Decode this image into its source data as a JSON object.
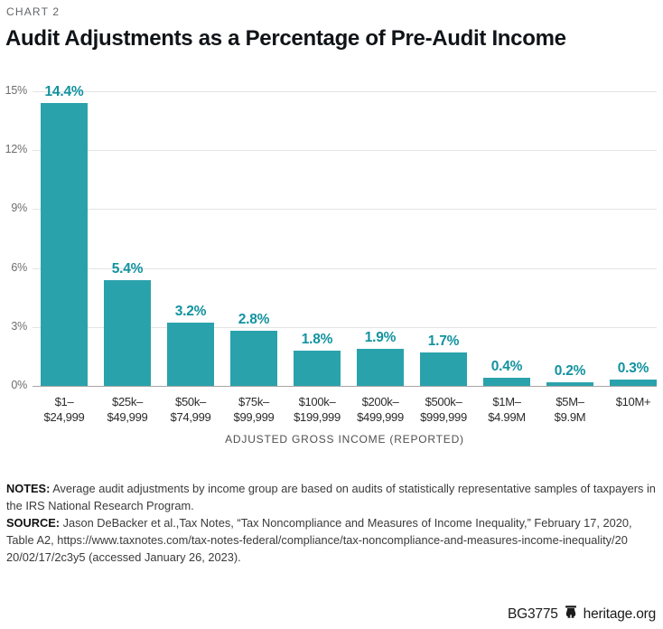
{
  "header": {
    "kicker": "CHART 2",
    "title": "Audit Adjustments as a Percentage of Pre-Audit Income"
  },
  "chart_data": {
    "type": "bar",
    "title": "Audit Adjustments as a Percentage of Pre-Audit Income",
    "xlabel": "ADJUSTED GROSS INCOME (REPORTED)",
    "ylabel": "",
    "ylim": [
      0,
      15
    ],
    "yticks": [
      0,
      3,
      6,
      9,
      12,
      15
    ],
    "ytick_labels": [
      "0%",
      "3%",
      "6%",
      "9%",
      "12%",
      "15%"
    ],
    "grid": true,
    "legend": "none",
    "bar_color": "#2aa2ac",
    "value_label_color": "#12929f",
    "categories": [
      [
        "$1–",
        "$24,999"
      ],
      [
        "$25k–",
        "$49,999"
      ],
      [
        "$50k–",
        "$74,999"
      ],
      [
        "$75k–",
        "$99,999"
      ],
      [
        "$100k–",
        "$199,999"
      ],
      [
        "$200k–",
        "$499,999"
      ],
      [
        "$500k–",
        "$999,999"
      ],
      [
        "$1M–",
        "$4.99M"
      ],
      [
        "$5M–",
        "$9.9M"
      ],
      [
        "$10M+"
      ]
    ],
    "values": [
      14.4,
      5.4,
      3.2,
      2.8,
      1.8,
      1.9,
      1.7,
      0.4,
      0.2,
      0.3
    ],
    "value_labels": [
      "14.4%",
      "5.4%",
      "3.2%",
      "2.8%",
      "1.8%",
      "1.9%",
      "1.7%",
      "0.4%",
      "0.2%",
      "0.3%"
    ]
  },
  "notes": {
    "notes_label": "NOTES:",
    "notes_text": " Average audit adjustments by income group are based on audits of statistically representative samples of taxpayers in the IRS National Research Program.",
    "source_label": "SOURCE:",
    "source_text": " Jason DeBacker et al.,Tax Notes, “Tax Noncompliance and Measures of Income Inequality,” February 17, 2020, Table A2, https://www.taxnotes.com/tax-notes-federal/compliance/tax-noncompliance-and-measures-income-inequality/20 20/02/17/2c3y5 (accessed January 26, 2023)."
  },
  "footer": {
    "doc_id": "BG3775",
    "site": "heritage.org"
  }
}
